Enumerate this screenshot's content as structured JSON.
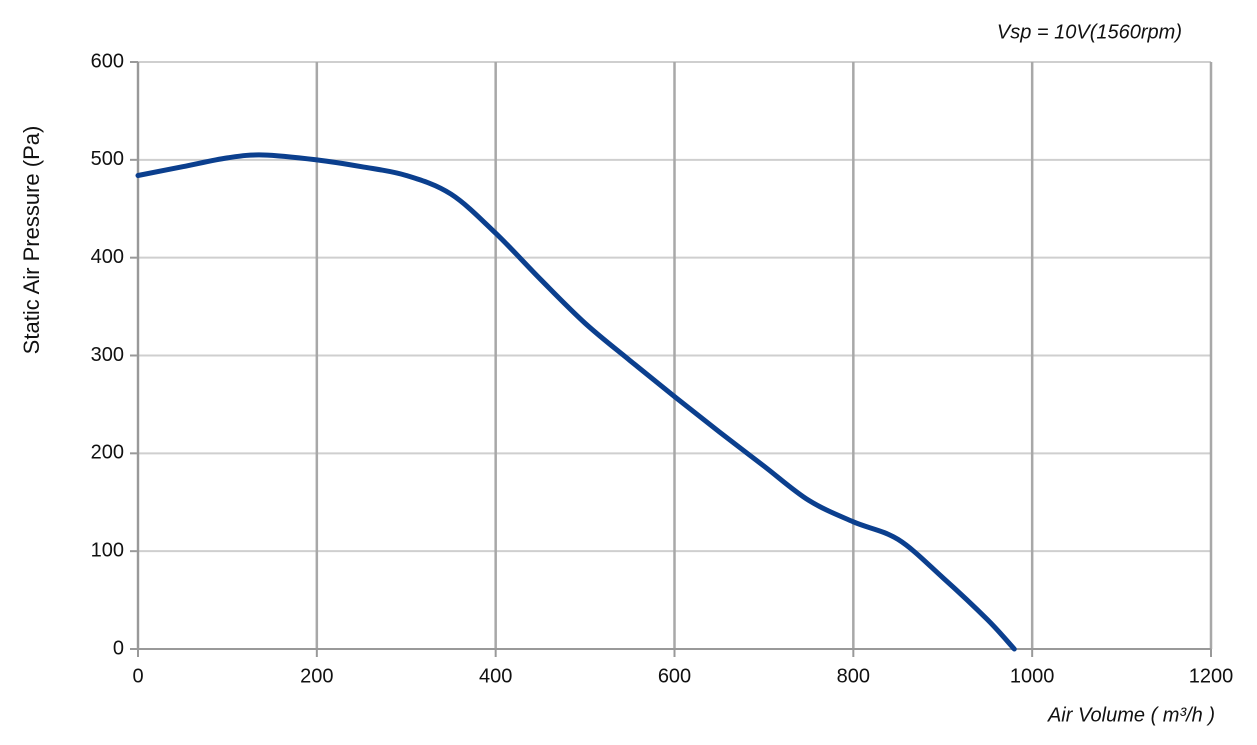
{
  "chart_data": {
    "type": "line",
    "annotation": "Vsp = 10V(1560rpm)",
    "x_label": "Air Volume ( m³/h )",
    "y_label": "Static Air Pressure  (Pa)",
    "x": [
      0,
      50,
      100,
      140,
      200,
      250,
      300,
      350,
      400,
      450,
      500,
      550,
      600,
      650,
      700,
      750,
      800,
      850,
      900,
      950,
      980
    ],
    "series": [
      {
        "name": "Vsp = 10V",
        "color": "#0b3f8e",
        "values": [
          484,
          493,
          502,
          505,
          500,
          493,
          484,
          465,
          425,
          378,
          333,
          295,
          258,
          222,
          187,
          152,
          130,
          112,
          73,
          30,
          0
        ]
      }
    ],
    "xlim": [
      0,
      1200
    ],
    "xticks": [
      0,
      200,
      400,
      600,
      800,
      1000,
      1200
    ],
    "ylim": [
      0,
      600
    ],
    "yticks": [
      0,
      100,
      200,
      300,
      400,
      500,
      600
    ],
    "grid": true
  }
}
